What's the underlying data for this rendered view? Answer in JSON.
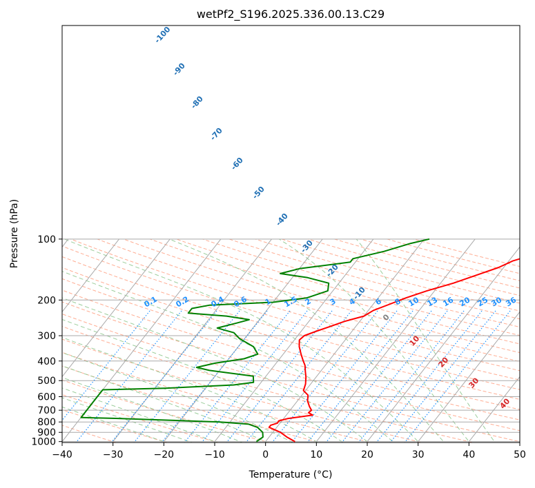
{
  "chart_data": {
    "type": "line",
    "title": "wetPf2_S196.2025.336.00.13.C29",
    "xlabel": "Temperature (°C)",
    "ylabel": "Pressure (hPa)",
    "xlim": [
      -40,
      50
    ],
    "ylim": [
      1050,
      100
    ],
    "y_scale": "log",
    "x_ticks": [
      -40,
      -30,
      -20,
      -10,
      0,
      10,
      20,
      30,
      40,
      50
    ],
    "y_ticks": [
      100,
      200,
      300,
      400,
      500,
      600,
      700,
      800,
      900,
      1000
    ],
    "grid": true,
    "series": [
      {
        "color": "#ff0000",
        "points": [
          [
            5.8,
            1000
          ],
          [
            3.5,
            950
          ],
          [
            1.5,
            900
          ],
          [
            -1.5,
            850
          ],
          [
            -1.5,
            830
          ],
          [
            -0.5,
            810
          ],
          [
            -0.6,
            790
          ],
          [
            0.8,
            770
          ],
          [
            5.2,
            740
          ],
          [
            4.0,
            720
          ],
          [
            4.2,
            700
          ],
          [
            3.2,
            670
          ],
          [
            2.0,
            630
          ],
          [
            1.2,
            590
          ],
          [
            -0.4,
            560
          ],
          [
            -1.0,
            520
          ],
          [
            -2.0,
            480
          ],
          [
            -3.0,
            450
          ],
          [
            -4.0,
            420
          ],
          [
            -5.0,
            400
          ],
          [
            -6.5,
            370
          ],
          [
            -8.0,
            340
          ],
          [
            -9.0,
            315
          ],
          [
            -8.7,
            300
          ],
          [
            -7.0,
            285
          ],
          [
            -5.0,
            270
          ],
          [
            -3.0,
            255
          ],
          [
            0.0,
            240
          ],
          [
            1.0,
            225
          ],
          [
            3.2,
            210
          ],
          [
            5.5,
            195
          ],
          [
            8.5,
            180
          ],
          [
            12.5,
            165
          ],
          [
            16.0,
            150
          ],
          [
            19.0,
            138
          ],
          [
            20.8,
            128
          ],
          [
            24.5,
            118
          ],
          [
            25.5,
            110
          ],
          [
            27.0,
            100
          ]
        ]
      },
      {
        "color": "#008000",
        "points": [
          [
            -1.8,
            1000
          ],
          [
            -1.2,
            950
          ],
          [
            -2.0,
            900
          ],
          [
            -3.8,
            850
          ],
          [
            -6.0,
            820
          ],
          [
            -12.0,
            800
          ],
          [
            -25.0,
            780
          ],
          [
            -33.0,
            768
          ],
          [
            -40.0,
            760
          ],
          [
            -40.0,
            555
          ],
          [
            -28.0,
            545
          ],
          [
            -15.0,
            525
          ],
          [
            -11.5,
            510
          ],
          [
            -12.5,
            475
          ],
          [
            -22.0,
            445
          ],
          [
            -25.0,
            430
          ],
          [
            -22.0,
            410
          ],
          [
            -17.0,
            390
          ],
          [
            -15.0,
            370
          ],
          [
            -17.0,
            340
          ],
          [
            -21.0,
            310
          ],
          [
            -23.0,
            290
          ],
          [
            -27.0,
            275
          ],
          [
            -24.0,
            260
          ],
          [
            -22.0,
            250
          ],
          [
            -27.0,
            240
          ],
          [
            -35.0,
            232
          ],
          [
            -35.0,
            220
          ],
          [
            -32.0,
            212
          ],
          [
            -20.0,
            205
          ],
          [
            -14.0,
            195
          ],
          [
            -11.0,
            180
          ],
          [
            -12.0,
            165
          ],
          [
            -17.0,
            155
          ],
          [
            -23.0,
            148
          ],
          [
            -20.0,
            140
          ],
          [
            -11.0,
            130
          ],
          [
            -11.0,
            125
          ],
          [
            -6.0,
            115
          ],
          [
            -2.0,
            105
          ],
          [
            1.0,
            100
          ]
        ]
      }
    ],
    "isohume_labels": [
      "0.1",
      "0.2",
      "0.4",
      "0.6",
      "1",
      "1.5",
      "2",
      "3",
      "4",
      "6",
      "8",
      "10",
      "13",
      "16",
      "20",
      "25",
      "30",
      "36"
    ],
    "moist_adiabat_labels": [
      "-100",
      "-90",
      "-80",
      "-70",
      "-60",
      "-50",
      "-40",
      "-30",
      "-20",
      "-10",
      "0",
      "10",
      "20",
      "30",
      "40"
    ],
    "colors": {
      "temperature": "#ff0000",
      "dewpoint": "#008000",
      "isotherm": "#a9a9a9",
      "dry_adiabat": "#ff9f80",
      "moist_adiabat": "#90c890",
      "isohume": "#1e90ff",
      "cold_label": "#1f6fb4",
      "warm_label": "#d62728",
      "zero_label": "#808080"
    }
  }
}
